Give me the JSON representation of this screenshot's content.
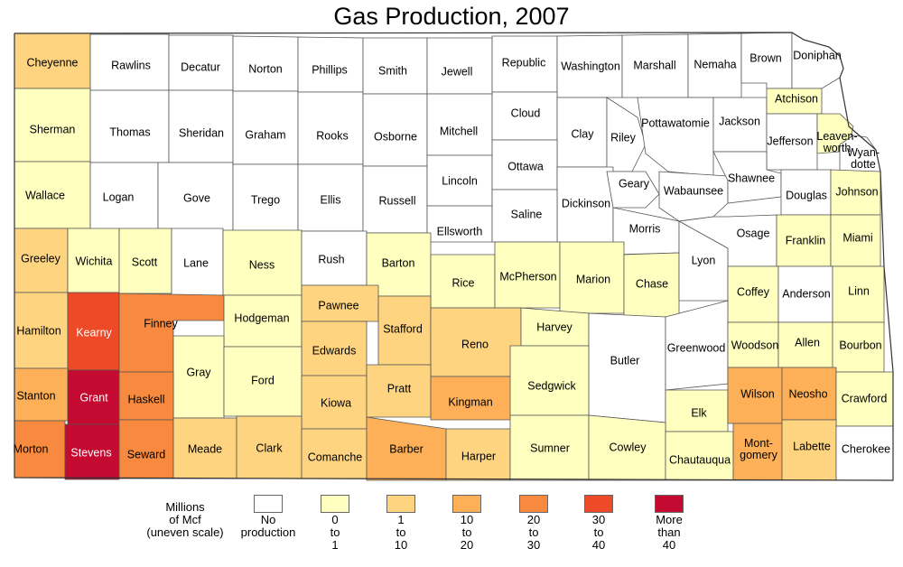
{
  "title": "Gas Production, 2007",
  "colors": {
    "none": "#ffffff",
    "c1": "#ffffc0",
    "c2": "#fed480",
    "c3": "#fdb058",
    "c4": "#f78a3e",
    "c5": "#ee4a28",
    "c6": "#c40a30"
  },
  "legend": {
    "title": "Millions\nof Mcf\n(uneven scale)",
    "items": [
      {
        "key": "none",
        "label": "No\nproduction"
      },
      {
        "key": "c1",
        "label": "0\nto\n1"
      },
      {
        "key": "c2",
        "label": "1\nto\n10"
      },
      {
        "key": "c3",
        "label": "10\nto\n20"
      },
      {
        "key": "c4",
        "label": "20\nto\n30"
      },
      {
        "key": "c5",
        "label": "30\nto\n40"
      },
      {
        "key": "c6",
        "label": "More\nthan\n40"
      }
    ]
  },
  "counties": [
    {
      "name": "Cheyenne",
      "cls": "c2"
    },
    {
      "name": "Rawlins",
      "cls": "none"
    },
    {
      "name": "Decatur",
      "cls": "none"
    },
    {
      "name": "Norton",
      "cls": "none"
    },
    {
      "name": "Phillips",
      "cls": "none"
    },
    {
      "name": "Smith",
      "cls": "none"
    },
    {
      "name": "Jewell",
      "cls": "none"
    },
    {
      "name": "Republic",
      "cls": "none"
    },
    {
      "name": "Washington",
      "cls": "none"
    },
    {
      "name": "Marshall",
      "cls": "none"
    },
    {
      "name": "Nemaha",
      "cls": "none"
    },
    {
      "name": "Brown",
      "cls": "none"
    },
    {
      "name": "Doniphan",
      "cls": "none"
    },
    {
      "name": "Sherman",
      "cls": "c1"
    },
    {
      "name": "Thomas",
      "cls": "none"
    },
    {
      "name": "Sheridan",
      "cls": "none"
    },
    {
      "name": "Graham",
      "cls": "none"
    },
    {
      "name": "Rooks",
      "cls": "none"
    },
    {
      "name": "Osborne",
      "cls": "none"
    },
    {
      "name": "Mitchell",
      "cls": "none"
    },
    {
      "name": "Cloud",
      "cls": "none"
    },
    {
      "name": "Clay",
      "cls": "none"
    },
    {
      "name": "Riley",
      "cls": "none"
    },
    {
      "name": "Pottawatomie",
      "cls": "none"
    },
    {
      "name": "Jackson",
      "cls": "none"
    },
    {
      "name": "Atchison",
      "cls": "c1"
    },
    {
      "name": "Jefferson",
      "cls": "none"
    },
    {
      "name": "Leaven-\nworth",
      "cls": "c1"
    },
    {
      "name": "Wyan-\ndotte",
      "cls": "none"
    },
    {
      "name": "Wallace",
      "cls": "c1"
    },
    {
      "name": "Logan",
      "cls": "none"
    },
    {
      "name": "Gove",
      "cls": "none"
    },
    {
      "name": "Trego",
      "cls": "none"
    },
    {
      "name": "Ellis",
      "cls": "none"
    },
    {
      "name": "Russell",
      "cls": "none"
    },
    {
      "name": "Lincoln",
      "cls": "none"
    },
    {
      "name": "Ottawa",
      "cls": "none"
    },
    {
      "name": "Dickinson",
      "cls": "none"
    },
    {
      "name": "Geary",
      "cls": "none"
    },
    {
      "name": "Wabaunsee",
      "cls": "none"
    },
    {
      "name": "Shawnee",
      "cls": "none"
    },
    {
      "name": "Douglas",
      "cls": "none"
    },
    {
      "name": "Johnson",
      "cls": "c1"
    },
    {
      "name": "Ellsworth",
      "cls": "none"
    },
    {
      "name": "Saline",
      "cls": "none"
    },
    {
      "name": "Morris",
      "cls": "none"
    },
    {
      "name": "Osage",
      "cls": "none"
    },
    {
      "name": "Franklin",
      "cls": "c1"
    },
    {
      "name": "Miami",
      "cls": "c1"
    },
    {
      "name": "Greeley",
      "cls": "c2"
    },
    {
      "name": "Wichita",
      "cls": "c1"
    },
    {
      "name": "Scott",
      "cls": "c1"
    },
    {
      "name": "Lane",
      "cls": "none"
    },
    {
      "name": "Ness",
      "cls": "c1"
    },
    {
      "name": "Rush",
      "cls": "none"
    },
    {
      "name": "Barton",
      "cls": "c1"
    },
    {
      "name": "Rice",
      "cls": "c1"
    },
    {
      "name": "McPherson",
      "cls": "c1"
    },
    {
      "name": "Marion",
      "cls": "c1"
    },
    {
      "name": "Chase",
      "cls": "c1"
    },
    {
      "name": "Lyon",
      "cls": "none"
    },
    {
      "name": "Coffey",
      "cls": "c1"
    },
    {
      "name": "Anderson",
      "cls": "none"
    },
    {
      "name": "Linn",
      "cls": "c1"
    },
    {
      "name": "Hamilton",
      "cls": "c2"
    },
    {
      "name": "Kearny",
      "cls": "c5"
    },
    {
      "name": "Finney",
      "cls": "c4"
    },
    {
      "name": "Hodgeman",
      "cls": "c1"
    },
    {
      "name": "Pawnee",
      "cls": "c2"
    },
    {
      "name": "Stafford",
      "cls": "c2"
    },
    {
      "name": "Reno",
      "cls": "c2"
    },
    {
      "name": "Harvey",
      "cls": "c1"
    },
    {
      "name": "Edwards",
      "cls": "c2"
    },
    {
      "name": "Butler",
      "cls": "none"
    },
    {
      "name": "Greenwood",
      "cls": "none"
    },
    {
      "name": "Woodson",
      "cls": "c1"
    },
    {
      "name": "Allen",
      "cls": "c1"
    },
    {
      "name": "Bourbon",
      "cls": "c1"
    },
    {
      "name": "Gray",
      "cls": "c1"
    },
    {
      "name": "Ford",
      "cls": "c1"
    },
    {
      "name": "Stanton",
      "cls": "c3"
    },
    {
      "name": "Grant",
      "cls": "c6"
    },
    {
      "name": "Haskell",
      "cls": "c4"
    },
    {
      "name": "Kiowa",
      "cls": "c2"
    },
    {
      "name": "Pratt",
      "cls": "c2"
    },
    {
      "name": "Kingman",
      "cls": "c3"
    },
    {
      "name": "Sedgwick",
      "cls": "c1"
    },
    {
      "name": "Elk",
      "cls": "c1"
    },
    {
      "name": "Wilson",
      "cls": "c3"
    },
    {
      "name": "Neosho",
      "cls": "c3"
    },
    {
      "name": "Crawford",
      "cls": "c1"
    },
    {
      "name": "Morton",
      "cls": "c4"
    },
    {
      "name": "Stevens",
      "cls": "c6"
    },
    {
      "name": "Seward",
      "cls": "c4"
    },
    {
      "name": "Meade",
      "cls": "c2"
    },
    {
      "name": "Clark",
      "cls": "c2"
    },
    {
      "name": "Comanche",
      "cls": "c2"
    },
    {
      "name": "Barber",
      "cls": "c3"
    },
    {
      "name": "Harper",
      "cls": "c2"
    },
    {
      "name": "Sumner",
      "cls": "c1"
    },
    {
      "name": "Cowley",
      "cls": "c1"
    },
    {
      "name": "Chautauqua",
      "cls": "c1"
    },
    {
      "name": "Mont-\ngomery",
      "cls": "c3"
    },
    {
      "name": "Labette",
      "cls": "c2"
    },
    {
      "name": "Cherokee",
      "cls": "none"
    }
  ]
}
